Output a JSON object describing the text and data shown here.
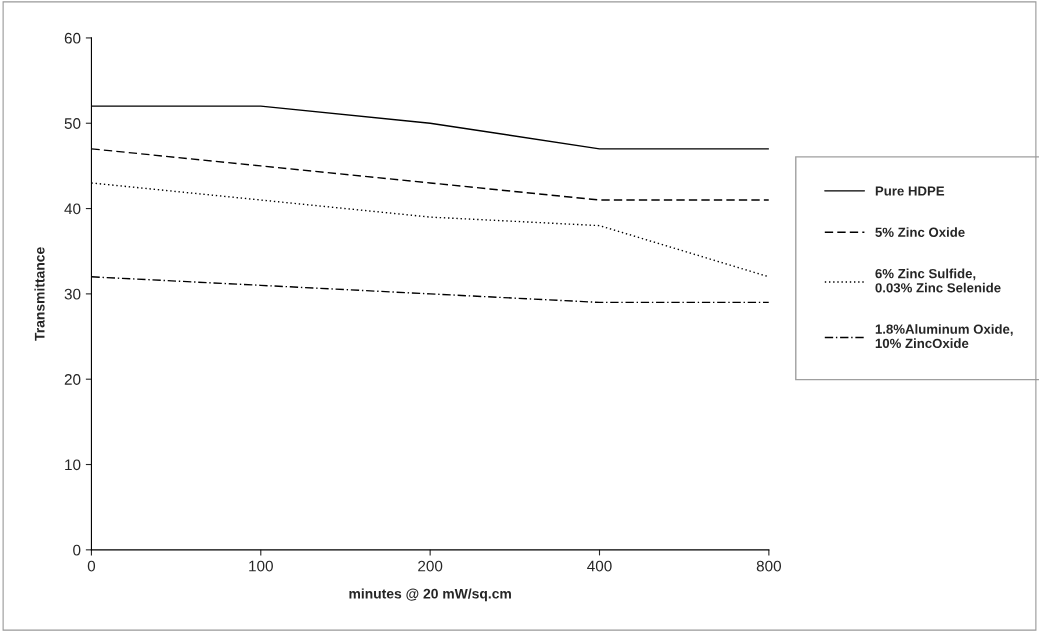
{
  "chart_data": {
    "type": "line",
    "xlabel": "minutes @ 20 mW/sq.cm",
    "ylabel": "Transmittance",
    "categories": [
      "0",
      "100",
      "200",
      "400",
      "800"
    ],
    "series": [
      {
        "name": "Pure HDPE",
        "color": "#000000",
        "line_style": "solid",
        "values": [
          52,
          52,
          50,
          47,
          47
        ]
      },
      {
        "name": "5% Zinc Oxide",
        "color": "#000000",
        "line_style": "dashed",
        "values": [
          47,
          45,
          43,
          41,
          41
        ]
      },
      {
        "name": "6% Zinc Sulfide,\n0.03% Zinc Selenide",
        "color": "#000000",
        "line_style": "dotted",
        "values": [
          43,
          41,
          39,
          38,
          32
        ]
      },
      {
        "name": "1.8%Aluminum Oxide,\n10% ZincOxide",
        "color": "#000000",
        "line_style": "dashdot",
        "values": [
          32,
          31,
          30,
          29,
          29
        ]
      }
    ],
    "ylim": [
      0,
      60
    ],
    "yticks": [
      0,
      10,
      20,
      30,
      40,
      50,
      60
    ],
    "grid": false,
    "legend": "right",
    "marker": "none"
  }
}
